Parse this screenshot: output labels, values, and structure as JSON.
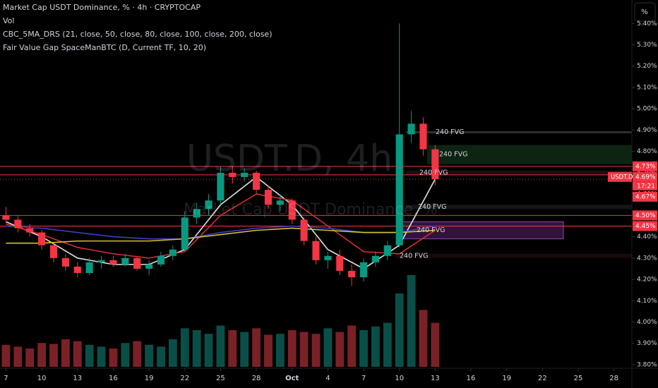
{
  "chart_data": {
    "type": "candlestick",
    "title": "Market Cap USDT Dominance, % · 4h · CRYPTOCAP",
    "indicators": [
      "Vol",
      "CBC_5MA_DRS (21, close, 50, close, 80, close, 100, close, 200, close)",
      "Fair Value Gap SpaceManBTC (D, Current TF, 10, 20)"
    ],
    "watermark": "USDT.D, 4h",
    "watermark_subtitle": "Market Cap USDT Dominance, %",
    "scale_button": "%",
    "up_color": "#089981",
    "down_color": "#f23645",
    "x": [
      0,
      1,
      2,
      3,
      4,
      5,
      6,
      7,
      8,
      9,
      10,
      11,
      12,
      13,
      14,
      15,
      16,
      17,
      18,
      19,
      20,
      21,
      22,
      23,
      24,
      25,
      26,
      27,
      28,
      29,
      30,
      31,
      32,
      33,
      34,
      35,
      36
    ],
    "open": [
      4.5,
      4.48,
      4.44,
      4.42,
      4.36,
      4.3,
      4.26,
      4.23,
      4.28,
      4.29,
      4.27,
      4.3,
      4.25,
      4.27,
      4.31,
      4.34,
      4.49,
      4.53,
      4.57,
      4.7,
      4.68,
      4.7,
      4.62,
      4.55,
      4.57,
      4.48,
      4.38,
      4.29,
      4.31,
      4.24,
      4.21,
      4.28,
      4.31,
      4.36,
      4.88,
      4.93,
      4.81
    ],
    "high": [
      4.54,
      4.5,
      4.46,
      4.43,
      4.37,
      4.32,
      4.28,
      4.3,
      4.31,
      4.31,
      4.32,
      4.31,
      4.29,
      4.33,
      4.36,
      4.52,
      4.56,
      4.6,
      4.73,
      4.73,
      4.72,
      4.71,
      4.64,
      4.6,
      4.58,
      4.49,
      4.4,
      4.33,
      4.34,
      4.27,
      4.3,
      4.33,
      4.38,
      5.4,
      4.99,
      4.96,
      4.83
    ],
    "low": [
      4.47,
      4.42,
      4.4,
      4.34,
      4.28,
      4.24,
      4.21,
      4.22,
      4.25,
      4.26,
      4.26,
      4.24,
      4.22,
      4.26,
      4.29,
      4.33,
      4.46,
      4.5,
      4.55,
      4.65,
      4.66,
      4.6,
      4.53,
      4.52,
      4.46,
      4.36,
      4.27,
      4.25,
      4.22,
      4.17,
      4.19,
      4.26,
      4.29,
      4.35,
      4.84,
      4.78,
      4.64
    ],
    "close": [
      4.48,
      4.44,
      4.42,
      4.36,
      4.3,
      4.26,
      4.23,
      4.28,
      4.29,
      4.27,
      4.3,
      4.25,
      4.27,
      4.31,
      4.34,
      4.49,
      4.53,
      4.57,
      4.7,
      4.68,
      4.7,
      4.62,
      4.55,
      4.57,
      4.48,
      4.38,
      4.29,
      4.31,
      4.24,
      4.21,
      4.28,
      4.31,
      4.36,
      4.88,
      4.93,
      4.81,
      4.67
    ],
    "volume": [
      24,
      22,
      20,
      26,
      25,
      30,
      28,
      24,
      22,
      20,
      26,
      28,
      24,
      22,
      30,
      42,
      40,
      36,
      45,
      40,
      38,
      42,
      35,
      36,
      40,
      38,
      36,
      42,
      38,
      45,
      40,
      44,
      48,
      80,
      100,
      62,
      48
    ],
    "ma_series": [
      {
        "color": "#e0e0e0",
        "x": [
          0,
          3,
          6,
          9,
          12,
          15,
          18,
          21,
          24,
          27,
          30,
          33,
          36
        ],
        "values": [
          4.47,
          4.4,
          4.3,
          4.27,
          4.27,
          4.34,
          4.55,
          4.68,
          4.55,
          4.34,
          4.25,
          4.36,
          4.67
        ]
      },
      {
        "color": "#d32f2f",
        "x": [
          0,
          3,
          6,
          9,
          12,
          15,
          18,
          21,
          24,
          27,
          30,
          33,
          36
        ],
        "values": [
          4.46,
          4.41,
          4.35,
          4.32,
          4.3,
          4.33,
          4.5,
          4.6,
          4.57,
          4.45,
          4.33,
          4.32,
          4.43
        ]
      },
      {
        "color": "#3f3fbf",
        "x": [
          0,
          3,
          6,
          9,
          12,
          15,
          18,
          21,
          24,
          27,
          30,
          33,
          36
        ],
        "values": [
          4.45,
          4.44,
          4.42,
          4.4,
          4.39,
          4.39,
          4.42,
          4.44,
          4.45,
          4.44,
          4.42,
          4.42,
          4.45
        ]
      },
      {
        "color": "#d4c22a",
        "x": [
          0,
          3,
          6,
          9,
          12,
          15,
          18,
          21,
          24,
          27,
          30,
          33,
          36
        ],
        "values": [
          4.37,
          4.37,
          4.38,
          4.38,
          4.38,
          4.39,
          4.41,
          4.43,
          4.44,
          4.43,
          4.42,
          4.42,
          4.43
        ]
      }
    ],
    "fvg": [
      {
        "label": "240 FVG",
        "top": 4.895,
        "bottom": 4.885
      },
      {
        "label": "240 FVG",
        "top": 4.83,
        "bottom": 4.74
      },
      {
        "label": "240 FVG",
        "top": 4.71,
        "bottom": 4.69
      },
      {
        "label": "240 FVG",
        "top": 4.55,
        "bottom": 4.53
      },
      {
        "label": "240 FVG",
        "top": 4.47,
        "bottom": 4.39
      },
      {
        "label": "240 FVG",
        "top": 4.32,
        "bottom": 4.3
      }
    ],
    "price_lines": [
      {
        "value": 4.73,
        "label": "4.73%"
      },
      {
        "value": 4.69,
        "label": "4.69%"
      },
      {
        "value": 4.67,
        "label": "4.67%"
      },
      {
        "value": 4.5,
        "label": "4.50%"
      },
      {
        "value": 4.45,
        "label": "4.45%"
      }
    ],
    "symbol_tag": "USDT.D",
    "countdown": "17:21",
    "xlim": [
      -0.5,
      52.5
    ],
    "ylim": [
      3.79,
      5.51
    ],
    "xticks": [
      {
        "value": 0,
        "label": "7"
      },
      {
        "value": 3,
        "label": "10"
      },
      {
        "value": 6,
        "label": "13"
      },
      {
        "value": 9,
        "label": "16"
      },
      {
        "value": 12,
        "label": "19"
      },
      {
        "value": 15,
        "label": "22"
      },
      {
        "value": 18,
        "label": "25"
      },
      {
        "value": 21,
        "label": "28"
      },
      {
        "value": 24,
        "label": "Oct"
      },
      {
        "value": 27,
        "label": "4"
      },
      {
        "value": 30,
        "label": "7"
      },
      {
        "value": 33,
        "label": "10"
      },
      {
        "value": 36,
        "label": "13"
      },
      {
        "value": 39,
        "label": "16"
      },
      {
        "value": 42,
        "label": "19"
      },
      {
        "value": 45,
        "label": "22"
      },
      {
        "value": 48,
        "label": "25"
      },
      {
        "value": 51,
        "label": "28"
      }
    ],
    "yticks": [
      {
        "value": 3.8,
        "label": "3.80%"
      },
      {
        "value": 3.9,
        "label": "3.90%"
      },
      {
        "value": 4.0,
        "label": "4.00%"
      },
      {
        "value": 4.1,
        "label": "4.10%"
      },
      {
        "value": 4.2,
        "label": "4.20%"
      },
      {
        "value": 4.3,
        "label": "4.30%"
      },
      {
        "value": 4.4,
        "label": "4.40%"
      },
      {
        "value": 4.5,
        "label": "4.50%"
      },
      {
        "value": 4.6,
        "label": "4.60%"
      },
      {
        "value": 4.7,
        "label": "4.70%"
      },
      {
        "value": 4.8,
        "label": "4.80%"
      },
      {
        "value": 4.9,
        "label": "4.90%"
      },
      {
        "value": 5.0,
        "label": "5.00%"
      },
      {
        "value": 5.1,
        "label": "5.10%"
      },
      {
        "value": 5.2,
        "label": "5.20%"
      },
      {
        "value": 5.3,
        "label": "5.30%"
      },
      {
        "value": 5.4,
        "label": "5.40%"
      }
    ]
  }
}
